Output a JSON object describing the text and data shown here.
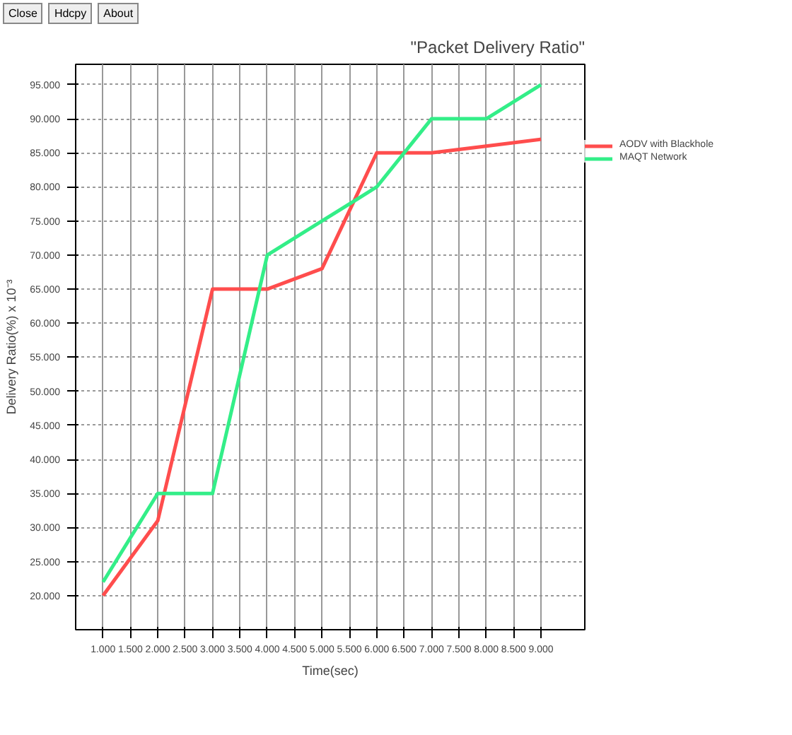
{
  "chart_data": {
    "type": "line",
    "title": "\"Packet Delivery Ratio\"",
    "xlabel": "Time(sec)",
    "ylabel": "Delivery Ratio(%) x 10⁻³",
    "x": [
      1,
      2,
      3,
      4,
      5,
      6,
      7,
      8,
      9
    ],
    "series": [
      {
        "name": "AODV with Blackhole",
        "color": "#ff4d4d",
        "values": [
          20,
          31,
          65,
          65,
          68,
          85,
          85,
          86,
          87
        ]
      },
      {
        "name": "MAQT Network",
        "color": "#33ee88",
        "values": [
          22,
          35,
          35,
          70,
          75,
          80,
          90,
          90,
          95
        ]
      }
    ],
    "xlim": [
      0.5,
      9.8
    ],
    "ylim": [
      15,
      98
    ],
    "xticks": [
      {
        "value": 1,
        "label": "1.000"
      },
      {
        "value": 1.5,
        "label": "1.500"
      },
      {
        "value": 2,
        "label": "2.000"
      },
      {
        "value": 2.5,
        "label": "2.500"
      },
      {
        "value": 3,
        "label": "3.000"
      },
      {
        "value": 3.5,
        "label": "3.500"
      },
      {
        "value": 4,
        "label": "4.000"
      },
      {
        "value": 4.5,
        "label": "4.500"
      },
      {
        "value": 5,
        "label": "5.000"
      },
      {
        "value": 5.5,
        "label": "5.500"
      },
      {
        "value": 6,
        "label": "6.000"
      },
      {
        "value": 6.5,
        "label": "6.500"
      },
      {
        "value": 7,
        "label": "7.000"
      },
      {
        "value": 7.5,
        "label": "7.500"
      },
      {
        "value": 8,
        "label": "8.000"
      },
      {
        "value": 8.5,
        "label": "8.500"
      },
      {
        "value": 9,
        "label": "9.000"
      }
    ],
    "yticks": [
      {
        "value": 20,
        "label": "20.000"
      },
      {
        "value": 25,
        "label": "25.000"
      },
      {
        "value": 30,
        "label": "30.000"
      },
      {
        "value": 35,
        "label": "35.000"
      },
      {
        "value": 40,
        "label": "40.000"
      },
      {
        "value": 45,
        "label": "45.000"
      },
      {
        "value": 50,
        "label": "50.000"
      },
      {
        "value": 55,
        "label": "55.000"
      },
      {
        "value": 60,
        "label": "60.000"
      },
      {
        "value": 65,
        "label": "65.000"
      },
      {
        "value": 70,
        "label": "70.000"
      },
      {
        "value": 75,
        "label": "75.000"
      },
      {
        "value": 80,
        "label": "80.000"
      },
      {
        "value": 85,
        "label": "85.000"
      },
      {
        "value": 90,
        "label": "90.000"
      },
      {
        "value": 95,
        "label": "95.000"
      }
    ],
    "annotations": [
      "Close",
      "Hdcpy",
      "About"
    ],
    "grid": true,
    "legend": "top right",
    "marker": "none",
    "line_style": "solid"
  }
}
